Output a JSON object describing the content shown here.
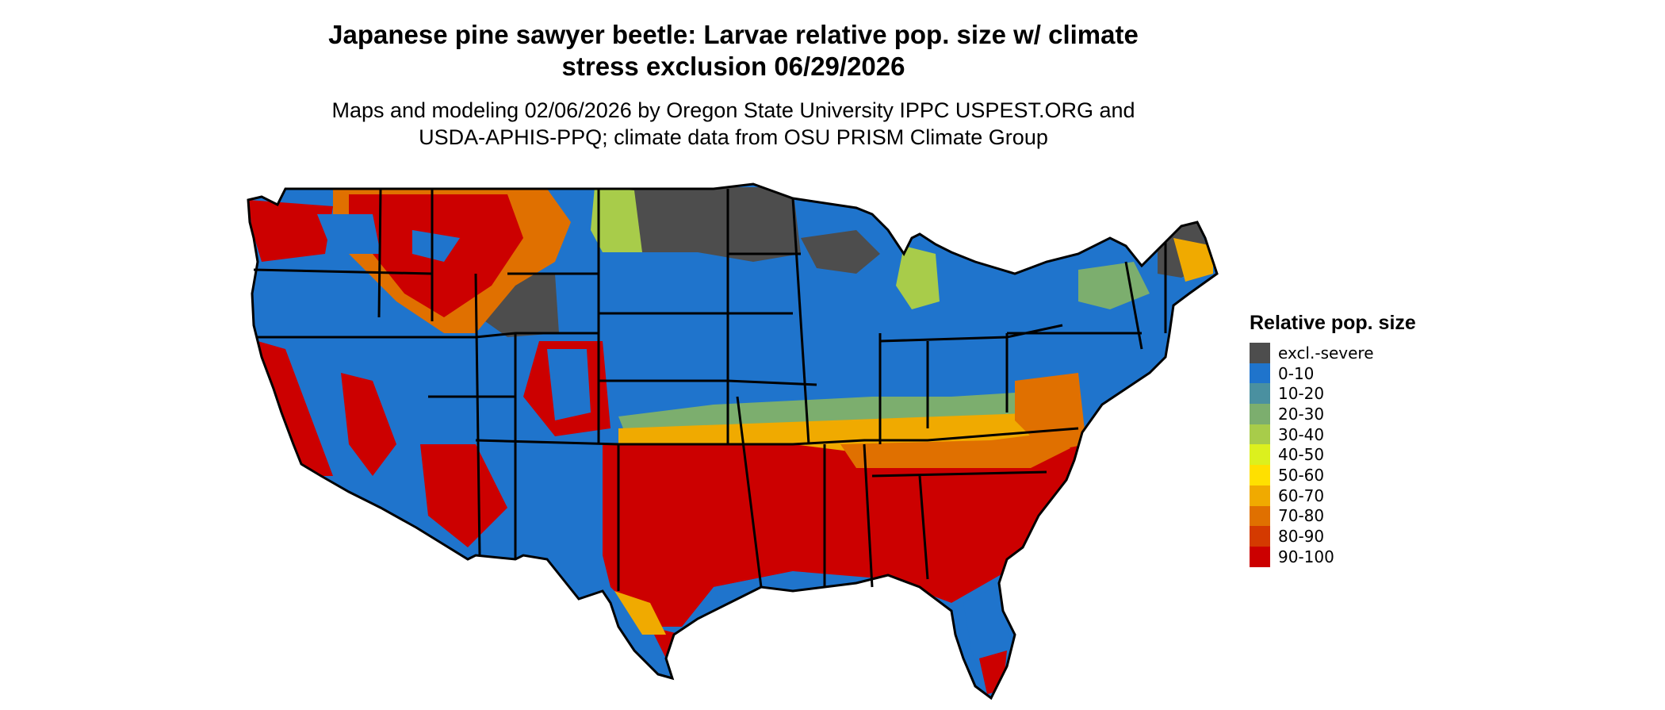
{
  "title_line1": "Japanese pine sawyer beetle: Larvae relative pop. size w/ climate",
  "title_line2": "stress exclusion 06/29/2026",
  "subtitle_line1": "Maps and modeling 02/06/2026 by Oregon State University IPPC USPEST.ORG and",
  "subtitle_line2": "USDA-APHIS-PPQ; climate data from OSU PRISM Climate Group",
  "legend": {
    "title": "Relative pop. size",
    "items": [
      {
        "label": "excl.-severe",
        "color": "#4d4d4d"
      },
      {
        "label": "0-10",
        "color": "#1f74cc"
      },
      {
        "label": "10-20",
        "color": "#4a90a0"
      },
      {
        "label": "20-30",
        "color": "#7cae6e"
      },
      {
        "label": "30-40",
        "color": "#a8cc4a"
      },
      {
        "label": "40-50",
        "color": "#dcf01e"
      },
      {
        "label": "50-60",
        "color": "#ffe000"
      },
      {
        "label": "60-70",
        "color": "#f0aa00"
      },
      {
        "label": "70-80",
        "color": "#e07000"
      },
      {
        "label": "80-90",
        "color": "#d43a00"
      },
      {
        "label": "90-100",
        "color": "#cc0000"
      }
    ]
  }
}
